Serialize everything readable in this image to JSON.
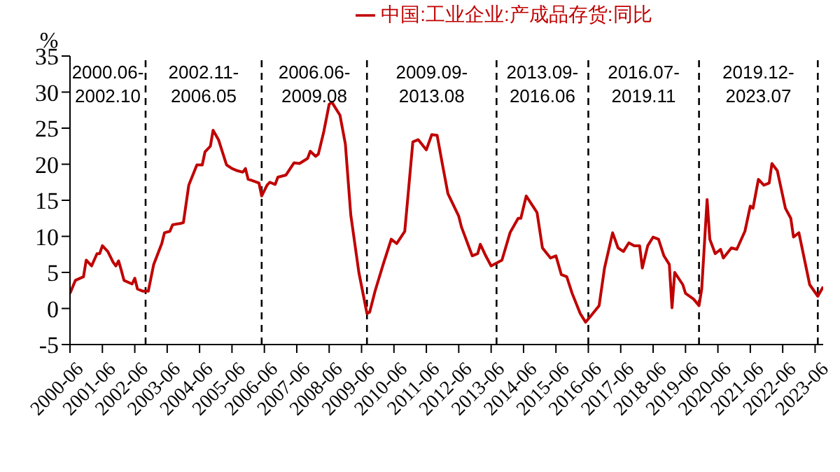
{
  "chart_data": {
    "type": "line",
    "ylabel": "%",
    "x": [
      "2000-06",
      "2000-08",
      "2000-11",
      "2000-12",
      "2001-02",
      "2001-04",
      "2001-05",
      "2001-06",
      "2001-08",
      "2001-10",
      "2001-11",
      "2001-12",
      "2002-01",
      "2002-02",
      "2002-05",
      "2002-06",
      "2002-07",
      "2002-09",
      "2002-11",
      "2003-01",
      "2003-04",
      "2003-05",
      "2003-07",
      "2003-08",
      "2003-11",
      "2003-12",
      "2004-02",
      "2004-05",
      "2004-07",
      "2004-08",
      "2004-10",
      "2004-11",
      "2005-01",
      "2005-04",
      "2005-06",
      "2005-08",
      "2005-10",
      "2005-11",
      "2005-12",
      "2006-01",
      "2006-04",
      "2006-05",
      "2006-07",
      "2006-08",
      "2006-10",
      "2006-11",
      "2007-02",
      "2007-05",
      "2007-07",
      "2007-10",
      "2007-11",
      "2008-01",
      "2008-02",
      "2008-04",
      "2008-06",
      "2008-07",
      "2008-10",
      "2008-12",
      "2009-02",
      "2009-05",
      "2009-08",
      "2009-09",
      "2009-11",
      "2010-02",
      "2010-05",
      "2010-07",
      "2010-10",
      "2010-11",
      "2011-01",
      "2011-03",
      "2011-06",
      "2011-08",
      "2011-10",
      "2011-12",
      "2012-02",
      "2012-06",
      "2012-07",
      "2012-11",
      "2013-01",
      "2013-02",
      "2013-04",
      "2013-06",
      "2013-10",
      "2014-01",
      "2014-04",
      "2014-05",
      "2014-07",
      "2014-11",
      "2015-01",
      "2015-04",
      "2015-06",
      "2015-08",
      "2015-10",
      "2015-12",
      "2016-03",
      "2016-05",
      "2016-07",
      "2016-10",
      "2016-12",
      "2017-03",
      "2017-05",
      "2017-07",
      "2017-09",
      "2017-11",
      "2018-01",
      "2018-02",
      "2018-04",
      "2018-06",
      "2018-08",
      "2018-10",
      "2018-12",
      "2019-01",
      "2019-02",
      "2019-05",
      "2019-06",
      "2019-09",
      "2019-11",
      "2019-12",
      "2020-02",
      "2020-03",
      "2020-05",
      "2020-07",
      "2020-08",
      "2020-11",
      "2021-01",
      "2021-04",
      "2021-06",
      "2021-07",
      "2021-09",
      "2021-11",
      "2022-01",
      "2022-02",
      "2022-04",
      "2022-07",
      "2022-09",
      "2022-10",
      "2022-12",
      "2023-04",
      "2023-07",
      "2023-09"
    ],
    "series": [
      {
        "name": "中国:工业企业:产成品存货:同比",
        "color": "#c00000",
        "values": [
          2.1,
          3.9,
          4.4,
          6.7,
          5.9,
          7.6,
          7.6,
          8.7,
          7.9,
          6.4,
          5.9,
          6.6,
          5.3,
          3.9,
          3.4,
          4.2,
          2.7,
          2.4,
          2.4,
          6.1,
          9.0,
          10.5,
          10.7,
          11.6,
          11.8,
          11.9,
          17.1,
          19.9,
          19.9,
          21.7,
          22.5,
          24.7,
          23.4,
          19.9,
          19.4,
          19.1,
          18.9,
          19.4,
          17.9,
          17.8,
          17.4,
          15.6,
          17.1,
          17.5,
          17.2,
          18.2,
          18.5,
          20.2,
          20.1,
          20.8,
          21.8,
          21.1,
          21.4,
          24.5,
          28.3,
          28.6,
          26.8,
          22.8,
          13.0,
          5.0,
          -0.7,
          -0.5,
          2.4,
          6.1,
          9.6,
          9.0,
          10.7,
          14.8,
          23.1,
          23.4,
          22.0,
          24.1,
          24.0,
          19.9,
          15.9,
          12.8,
          11.3,
          7.3,
          7.6,
          8.9,
          7.3,
          5.9,
          6.7,
          10.5,
          12.5,
          12.5,
          15.6,
          13.3,
          8.4,
          7.0,
          7.3,
          4.7,
          4.4,
          2.1,
          -0.7,
          -1.9,
          -1.0,
          0.4,
          5.6,
          10.5,
          8.4,
          7.9,
          9.1,
          8.7,
          8.7,
          5.6,
          8.7,
          9.9,
          9.6,
          7.3,
          6.1,
          0.1,
          5.0,
          3.3,
          2.1,
          1.3,
          0.4,
          2.7,
          15.1,
          9.6,
          7.6,
          8.2,
          7.0,
          8.4,
          8.2,
          10.7,
          14.2,
          13.9,
          17.9,
          17.1,
          17.4,
          20.1,
          19.1,
          13.9,
          12.5,
          9.9,
          10.5,
          3.3,
          1.7,
          3.0
        ]
      }
    ],
    "xlim": [
      "2000-06",
      "2023-09"
    ],
    "xticks": [
      "2000-06",
      "2001-06",
      "2002-06",
      "2003-06",
      "2004-06",
      "2005-06",
      "2006-06",
      "2007-06",
      "2008-06",
      "2009-06",
      "2010-06",
      "2011-06",
      "2012-06",
      "2013-06",
      "2014-06",
      "2015-06",
      "2016-06",
      "2017-06",
      "2018-06",
      "2019-06",
      "2020-06",
      "2021-06",
      "2022-06",
      "2023-06"
    ],
    "ylim": [
      -5,
      35
    ],
    "yticks": [
      -5,
      0,
      5,
      10,
      15,
      20,
      25,
      30,
      35
    ],
    "grid": false,
    "legend": "top",
    "marker": "none",
    "line_style": "solid",
    "ref_lines": [
      {
        "axis": "x",
        "value": "2002-10",
        "color": "#000000",
        "line_style": "dashed"
      },
      {
        "axis": "x",
        "value": "2006-05",
        "color": "#000000",
        "line_style": "dashed"
      },
      {
        "axis": "x",
        "value": "2009-08",
        "color": "#000000",
        "line_style": "dashed"
      },
      {
        "axis": "x",
        "value": "2013-08",
        "color": "#000000",
        "line_style": "dashed"
      },
      {
        "axis": "x",
        "value": "2016-06",
        "color": "#000000",
        "line_style": "dashed"
      },
      {
        "axis": "x",
        "value": "2019-11",
        "color": "#000000",
        "line_style": "dashed"
      },
      {
        "axis": "x",
        "value": "2023-07",
        "color": "#000000",
        "line_style": "dashed"
      }
    ],
    "annotations": [
      "2000.06-2002.10",
      "2002.11-2006.05",
      "2006.06-2009.08",
      "2009.09-2013.08",
      "2013.09-2016.06",
      "2016.07-2019.11",
      "2019.12-2023.07"
    ]
  }
}
